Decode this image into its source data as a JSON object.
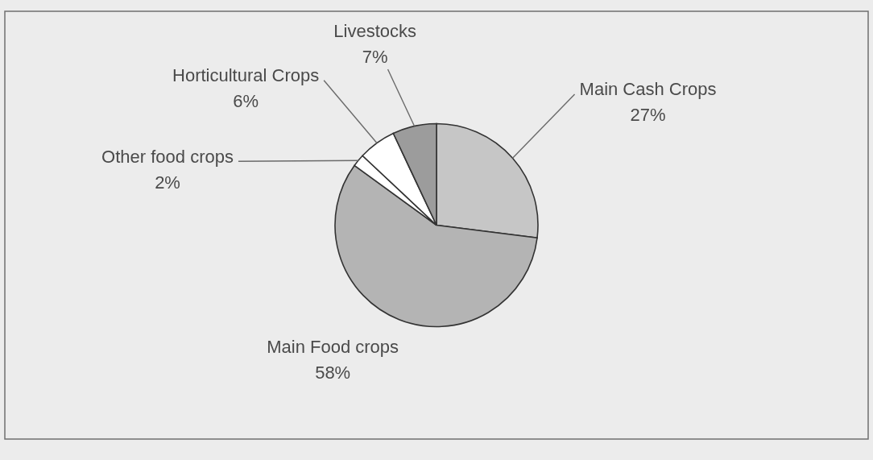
{
  "chart_data": {
    "type": "pie",
    "categories": [
      "Main Cash Crops",
      "Main Food crops",
      "Other food crops",
      "Horticultural Crops",
      "Livestocks"
    ],
    "values": [
      27,
      58,
      2,
      6,
      7
    ],
    "colors": [
      "#c6c6c6",
      "#b4b4b4",
      "#ffffff",
      "#ffffff",
      "#9c9c9c"
    ],
    "value_labels": [
      "27%",
      "58%",
      "2%",
      "6%",
      "7%"
    ]
  }
}
